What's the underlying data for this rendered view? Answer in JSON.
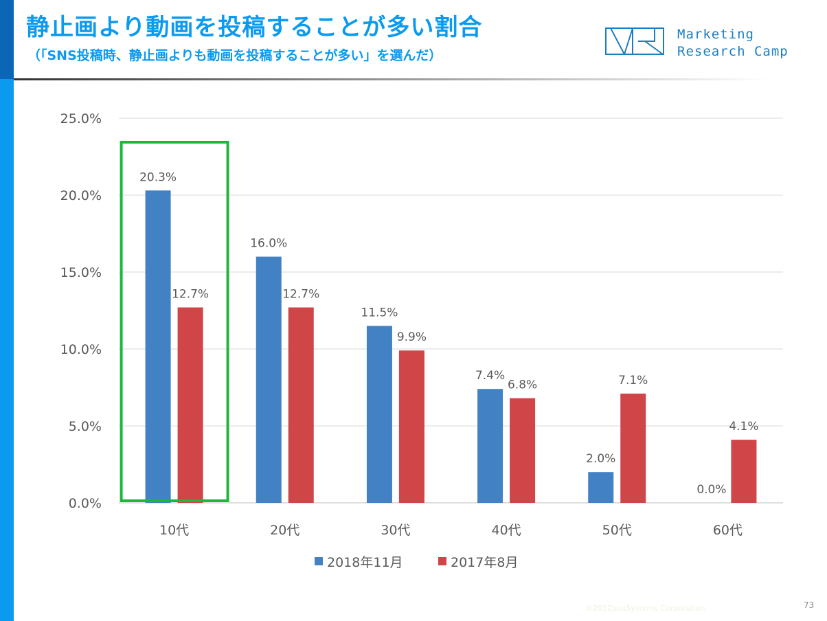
{
  "header": {
    "title": "静止画より動画を投稿することが多い割合",
    "subtitle": "（「SNS投稿時、静止画よりも動画を投稿することが多い」を選んだ）",
    "logo_lines": [
      "Marketing",
      "Research Camp"
    ]
  },
  "footer": {
    "copyright": "©2012JustSystems Corporation",
    "page": "73"
  },
  "chart_data": {
    "type": "bar",
    "categories": [
      "10代",
      "20代",
      "30代",
      "40代",
      "50代",
      "60代"
    ],
    "series": [
      {
        "name": "2018年11月",
        "color": "#4281c4",
        "values": [
          20.3,
          16.0,
          11.5,
          7.4,
          2.0,
          0.0
        ],
        "labels": [
          "20.3%",
          "16.0%",
          "11.5%",
          "7.4%",
          "2.0%",
          "0.0%"
        ]
      },
      {
        "name": "2017年8月",
        "color": "#cf4548",
        "values": [
          12.7,
          12.7,
          9.9,
          6.8,
          7.1,
          4.1
        ],
        "labels": [
          "12.7%",
          "12.7%",
          "9.9%",
          "6.8%",
          "7.1%",
          "4.1%"
        ]
      }
    ],
    "ylim": [
      0,
      25
    ],
    "yticks": [
      "0.0%",
      "5.0%",
      "10.0%",
      "15.0%",
      "20.0%",
      "25.0%"
    ],
    "grid": true,
    "legend": "bottom",
    "highlight": {
      "category": "10代",
      "color": "#1db83a"
    }
  }
}
